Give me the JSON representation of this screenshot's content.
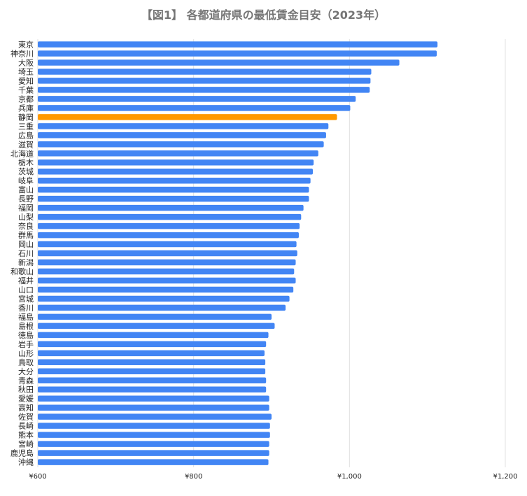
{
  "chart_data": {
    "type": "bar",
    "orientation": "horizontal",
    "title": "【図1】 各都道府県の最低賃金目安（2023年）",
    "categories": [
      "東京",
      "神奈川",
      "大阪",
      "埼玉",
      "愛知",
      "千葉",
      "京都",
      "兵庫",
      "静岡",
      "三重",
      "広島",
      "滋賀",
      "北海道",
      "栃木",
      "茨城",
      "岐阜",
      "富山",
      "長野",
      "福岡",
      "山梨",
      "奈良",
      "群馬",
      "岡山",
      "石川",
      "新潟",
      "和歌山",
      "福井",
      "山口",
      "宮城",
      "香川",
      "福島",
      "島根",
      "徳島",
      "岩手",
      "山形",
      "鳥取",
      "大分",
      "青森",
      "秋田",
      "愛媛",
      "高知",
      "佐賀",
      "長崎",
      "熊本",
      "宮崎",
      "鹿児島",
      "沖縄"
    ],
    "values": [
      1113,
      1112,
      1064,
      1028,
      1027,
      1026,
      1008,
      1001,
      984,
      973,
      970,
      967,
      960,
      954,
      953,
      950,
      948,
      948,
      941,
      938,
      936,
      935,
      932,
      933,
      931,
      929,
      931,
      928,
      923,
      918,
      900,
      904,
      896,
      893,
      891,
      892,
      892,
      893,
      893,
      897,
      897,
      900,
      898,
      898,
      897,
      897,
      896
    ],
    "highlight_category": "静岡",
    "xlim": [
      600,
      1200
    ],
    "xticks": [
      "¥600",
      "¥800",
      "¥1,000",
      "¥1,200"
    ],
    "xtick_values": [
      600,
      800,
      1000,
      1200
    ],
    "grid": true,
    "colors": {
      "bar": "#4285f4",
      "highlight": "#ff9900",
      "grid": "#e0e0e0",
      "label": "#222222",
      "title": "#757575"
    }
  }
}
